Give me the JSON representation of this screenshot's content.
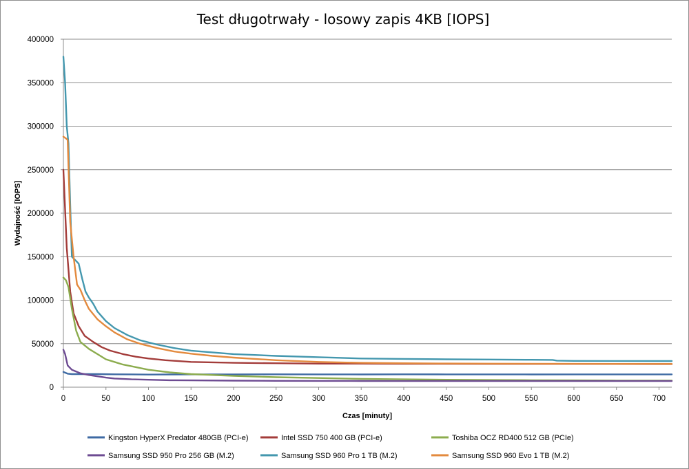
{
  "chart_data": {
    "type": "line",
    "title": "Test długotrwały - losowy zapis 4KB [IOPS]",
    "xlabel": "Czas [minuty]",
    "ylabel": "Wydajność [IOPS]",
    "xlim": [
      0,
      715
    ],
    "ylim": [
      0,
      400000
    ],
    "xticks": [
      0,
      50,
      100,
      150,
      200,
      250,
      300,
      350,
      400,
      450,
      500,
      550,
      600,
      650,
      700
    ],
    "yticks": [
      0,
      50000,
      100000,
      150000,
      200000,
      250000,
      300000,
      350000,
      400000
    ],
    "grid": true,
    "legend": "bottom",
    "series": [
      {
        "name": "Kingston HyperX Predator 480GB (PCI-e)",
        "color": "#3e6aa3",
        "x": [
          0,
          5,
          10,
          20,
          40,
          60,
          80,
          100,
          150,
          200,
          250,
          300,
          350,
          400,
          450,
          500,
          550,
          600,
          650,
          700,
          715
        ],
        "y": [
          17500,
          15500,
          15000,
          15000,
          15000,
          14800,
          14700,
          14500,
          14700,
          14600,
          14800,
          14700,
          14600,
          14800,
          14700,
          14700,
          14600,
          14700,
          14700,
          14700,
          14700
        ]
      },
      {
        "name": "Intel SSD 750 400 GB (PCI-e)",
        "color": "#a33c3a",
        "x": [
          0,
          4,
          8,
          12,
          18,
          25,
          35,
          45,
          55,
          70,
          85,
          100,
          120,
          150,
          200,
          250,
          300,
          350,
          400,
          450,
          500,
          600,
          700,
          715
        ],
        "y": [
          250000,
          160000,
          110000,
          85000,
          70000,
          59000,
          52000,
          46000,
          42000,
          38000,
          35000,
          33000,
          31000,
          29000,
          28000,
          27500,
          27000,
          27000,
          26800,
          26800,
          26700,
          26700,
          26600,
          26600
        ]
      },
      {
        "name": "Toshiba OCZ RD400 512 GB (PCIe)",
        "color": "#8cac4e",
        "x": [
          0,
          3,
          6,
          10,
          15,
          20,
          25,
          30,
          40,
          50,
          60,
          70,
          80,
          100,
          125,
          150,
          200,
          250,
          300,
          350,
          400,
          450,
          500,
          550,
          600,
          650,
          700,
          715
        ],
        "y": [
          126000,
          123000,
          115000,
          90000,
          65000,
          52000,
          48000,
          44000,
          38000,
          32000,
          29000,
          26000,
          24000,
          20000,
          17000,
          15000,
          13000,
          11500,
          10500,
          9500,
          9000,
          8500,
          8200,
          8000,
          7800,
          7600,
          7500,
          7500
        ]
      },
      {
        "name": "Samsung SSD 950 Pro 256 GB (M.2)",
        "color": "#6d4b92",
        "x": [
          0,
          2,
          5,
          10,
          15,
          20,
          30,
          40,
          50,
          60,
          80,
          100,
          125,
          150,
          200,
          250,
          300,
          350,
          400,
          450,
          500,
          600,
          700,
          715
        ],
        "y": [
          43000,
          38000,
          25000,
          20000,
          18000,
          16000,
          14000,
          12500,
          11000,
          10000,
          9000,
          8500,
          8000,
          7800,
          7500,
          7300,
          7200,
          7100,
          7000,
          7000,
          7000,
          7000,
          7000,
          7000
        ]
      },
      {
        "name": "Samsung SSD 960 Pro 1 TB (M.2)",
        "color": "#4397ae",
        "x": [
          0,
          2,
          4,
          6,
          8,
          10,
          14,
          18,
          22,
          26,
          30,
          35,
          40,
          50,
          60,
          75,
          90,
          110,
          130,
          150,
          175,
          200,
          250,
          300,
          350,
          400,
          450,
          500,
          550,
          575,
          580,
          600,
          700,
          715
        ],
        "y": [
          380000,
          350000,
          300000,
          280000,
          210000,
          150000,
          146000,
          142000,
          125000,
          110000,
          103000,
          96000,
          87000,
          76000,
          68000,
          60000,
          54000,
          49000,
          45000,
          42000,
          40000,
          38000,
          36000,
          34500,
          33000,
          32500,
          32000,
          31800,
          31500,
          31300,
          30500,
          30200,
          30000,
          30000
        ]
      },
      {
        "name": "Samsung SSD 960 Evo 1 TB (M.2)",
        "color": "#e38a3e",
        "x": [
          0,
          3,
          5,
          8,
          12,
          16,
          20,
          25,
          30,
          40,
          50,
          60,
          75,
          90,
          110,
          130,
          150,
          175,
          200,
          250,
          300,
          350,
          400,
          450,
          500,
          600,
          700,
          715
        ],
        "y": [
          288000,
          286000,
          284000,
          190000,
          150000,
          118000,
          112000,
          100000,
          90000,
          78000,
          70000,
          63000,
          55000,
          50000,
          45000,
          41000,
          38500,
          36000,
          34000,
          31000,
          29000,
          28000,
          27500,
          27200,
          27000,
          26800,
          26700,
          26700
        ]
      }
    ]
  }
}
